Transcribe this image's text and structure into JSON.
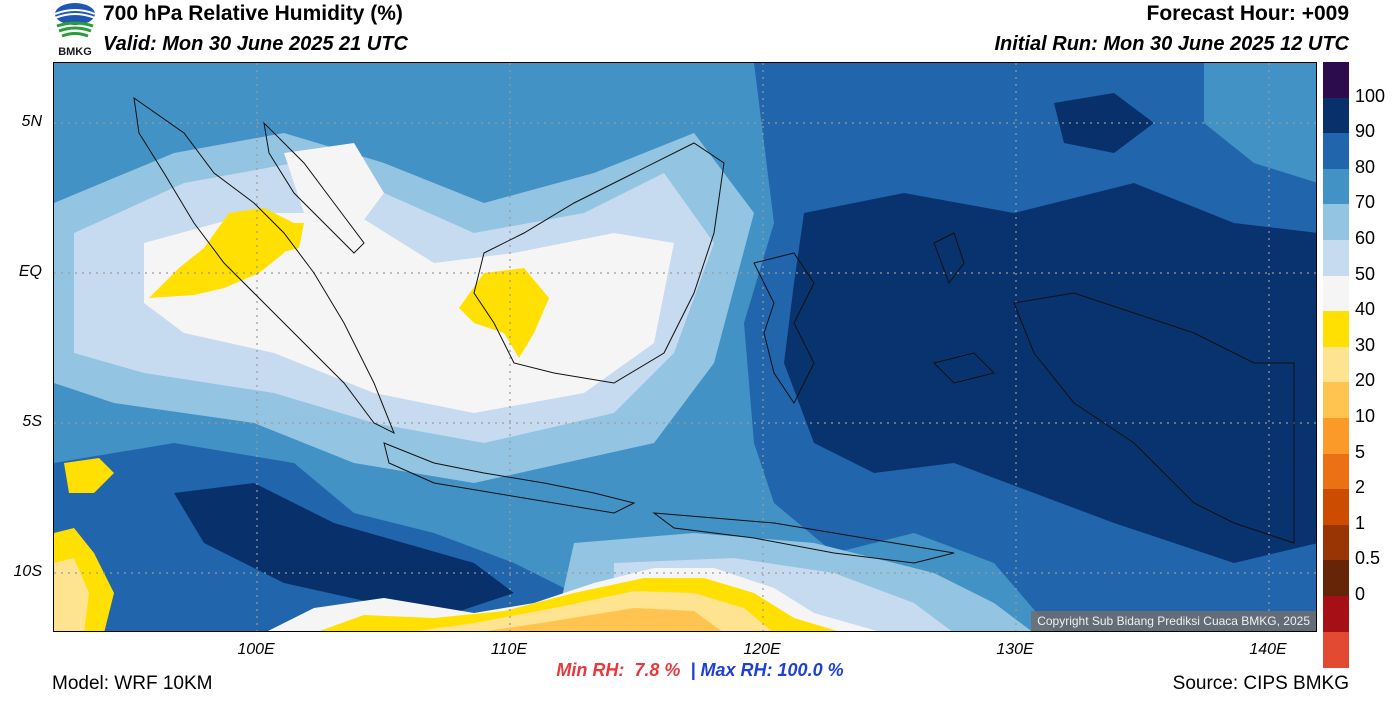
{
  "header": {
    "agency_logo": "BMKG",
    "title": "700 hPa Relative Humidity (%)",
    "valid": "Valid: Mon 30 June 2025 21 UTC",
    "forecast_hour": "Forecast Hour: +009",
    "initial_run": "Initial Run: Mon 30 June 2025 12 UTC"
  },
  "map": {
    "lat_labels": [
      "5N",
      "EQ",
      "5S",
      "10S"
    ],
    "lon_labels": [
      "100E",
      "110E",
      "120E",
      "130E",
      "140E"
    ],
    "copyright": "Copyright Sub Bidang Prediksi Cuaca BMKG, 2025"
  },
  "colorbar": {
    "labels": [
      "100",
      "90",
      "80",
      "70",
      "60",
      "50",
      "40",
      "30",
      "20",
      "10",
      "5",
      "2",
      "1",
      "0.5",
      "0"
    ],
    "colors": [
      "#2d0c4e",
      "#08306b",
      "#2166ac",
      "#4292c6",
      "#93c4e2",
      "#c6dbef",
      "#f5f5f5",
      "#ffe000",
      "#fee391",
      "#fec44f",
      "#fb9a29",
      "#ec7014",
      "#cc4c02",
      "#993404",
      "#662506",
      "#a50f15",
      "#e34a33"
    ]
  },
  "stats": {
    "min_label": "Min RH:",
    "min_value": "7.8 %",
    "separator": "|",
    "max_label": "Max RH:",
    "max_value": "100.0 %"
  },
  "footer": {
    "model": "Model: WRF 10KM",
    "source": "Source: CIPS BMKG"
  }
}
